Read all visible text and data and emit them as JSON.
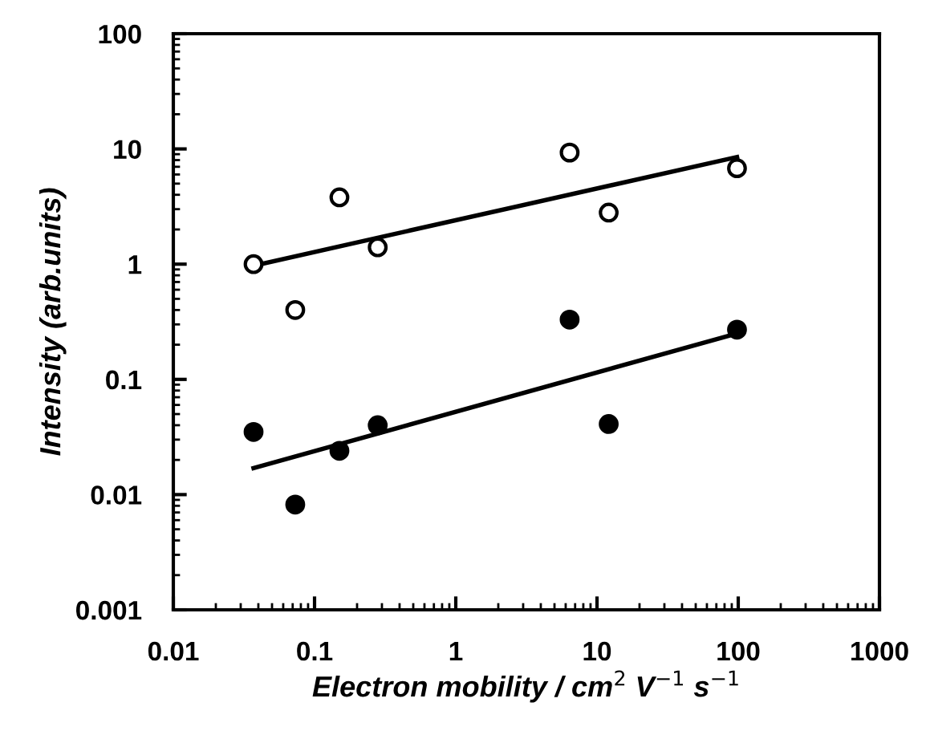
{
  "chart_data": {
    "type": "scatter",
    "xlabel": "Electron mobility / cm$^{2}$ V$^{−1}$ s$^{−1}$",
    "ylabel": "Intensity (arb.units)",
    "log": "xy",
    "grid": false,
    "legend": false,
    "xlim": [
      0.01,
      1000
    ],
    "xticks": [
      {
        "value": 0.01,
        "label": "0.01"
      },
      {
        "value": 0.1,
        "label": "0.1"
      },
      {
        "value": 1,
        "label": "1"
      },
      {
        "value": 10,
        "label": "10"
      },
      {
        "value": 100,
        "label": "100"
      },
      {
        "value": 1000,
        "label": "1000"
      }
    ],
    "ylim": [
      0.001,
      100
    ],
    "yticks": [
      {
        "value": 0.001,
        "label": "0.001"
      },
      {
        "value": 0.01,
        "label": "0.01"
      },
      {
        "value": 0.1,
        "label": "0.1"
      },
      {
        "value": 1,
        "label": "1"
      },
      {
        "value": 10,
        "label": "10"
      },
      {
        "value": 100,
        "label": "100"
      }
    ],
    "series": [
      {
        "marker": "circle",
        "color": "#ffffff",
        "x": [
          0.037,
          0.073,
          0.15,
          0.28,
          6.4,
          12.1,
          98
        ],
        "values": [
          1.0,
          0.4,
          3.8,
          1.4,
          9.3,
          2.8,
          6.8
        ]
      },
      {
        "marker": "circle",
        "color": "#000000",
        "x": [
          0.037,
          0.073,
          0.15,
          0.28,
          6.4,
          12.1,
          98
        ],
        "values": [
          0.035,
          0.0082,
          0.024,
          0.04,
          0.33,
          0.041,
          0.27
        ]
      },
      {
        "type": "line",
        "marker": "none",
        "color": "#000000",
        "x": [
          0.037,
          98
        ],
        "values": [
          0.97,
          8.5
        ]
      },
      {
        "type": "line",
        "marker": "none",
        "color": "#000000",
        "x": [
          0.037,
          98
        ],
        "values": [
          0.017,
          0.25
        ]
      }
    ]
  }
}
